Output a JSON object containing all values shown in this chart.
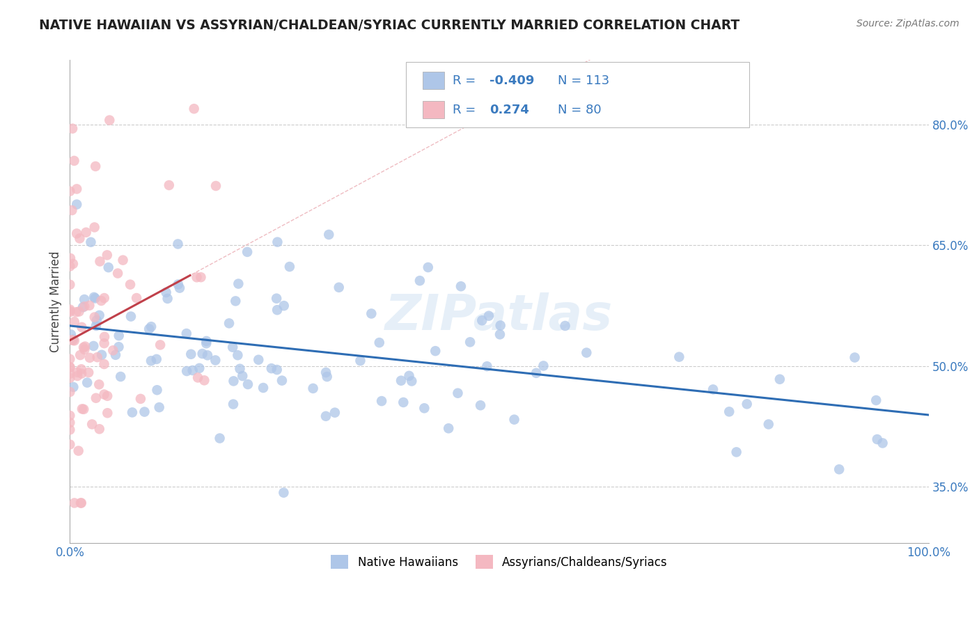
{
  "title": "NATIVE HAWAIIAN VS ASSYRIAN/CHALDEAN/SYRIAC CURRENTLY MARRIED CORRELATION CHART",
  "source": "Source: ZipAtlas.com",
  "ylabel": "Currently Married",
  "xlim": [
    0,
    1.0
  ],
  "ylim": [
    0.28,
    0.88
  ],
  "xtick_labels": [
    "0.0%",
    "100.0%"
  ],
  "ytick_labels": [
    "35.0%",
    "50.0%",
    "65.0%",
    "80.0%"
  ],
  "ytick_values": [
    0.35,
    0.5,
    0.65,
    0.8
  ],
  "bottom_legend": [
    "Native Hawaiians",
    "Assyrians/Chaldeans/Syriacs"
  ],
  "bottom_legend_colors": [
    "#aec6e8",
    "#f4b8c1"
  ],
  "watermark": "ZIPatlas",
  "title_color": "#222222",
  "source_color": "#777777",
  "grid_color": "#cccccc",
  "blue_scatter_color": "#aec6e8",
  "pink_scatter_color": "#f4b8c1",
  "blue_line_color": "#2e6db4",
  "pink_line_color": "#c0404a",
  "background_color": "#ffffff",
  "legend_text_color": "#3a7abf",
  "tick_color": "#3a7abf",
  "blue_line_intercept": 0.535,
  "blue_line_slope": -0.095,
  "pink_line_intercept": 0.495,
  "pink_line_slope": 1.35
}
